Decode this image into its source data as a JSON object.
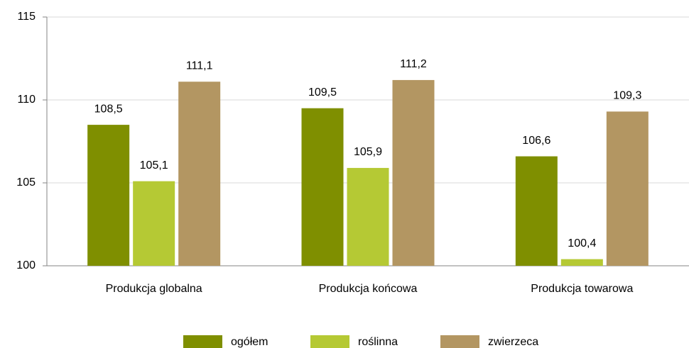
{
  "chart_data": {
    "type": "bar",
    "categories": [
      "Produkcja globalna",
      "Produkcja końcowa",
      "Produkcja towarowa"
    ],
    "series": [
      {
        "name": "ogółem",
        "color": "#7f8f00",
        "values": [
          108.5,
          109.5,
          106.6
        ],
        "value_labels": [
          "108,5",
          "109,5",
          "106,6"
        ]
      },
      {
        "name": "roślinna",
        "color": "#b5c934",
        "values": [
          105.1,
          105.9,
          100.4
        ],
        "value_labels": [
          "105,1",
          "105,9",
          "100,4"
        ]
      },
      {
        "name": "zwierzeca",
        "color": "#b39662",
        "values": [
          111.1,
          111.2,
          109.3
        ],
        "value_labels": [
          "111,1",
          "111,2",
          "109,3"
        ]
      }
    ],
    "ylim": [
      100,
      115
    ],
    "yticks": [
      100,
      105,
      110,
      115
    ],
    "grid": true,
    "legend": "bottom"
  }
}
